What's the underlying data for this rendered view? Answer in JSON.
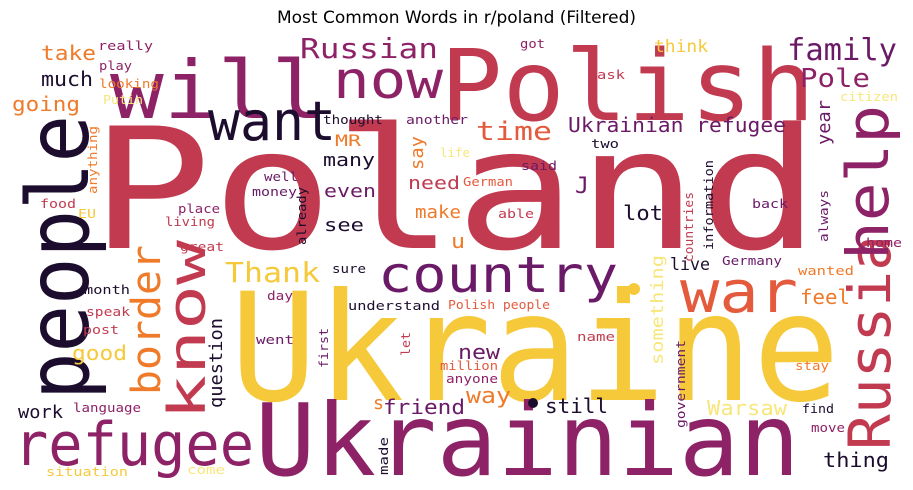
{
  "title": "Most Common Words in r/poland (Filtered)",
  "palette": {
    "crimson": "#c23a50",
    "magenta": "#8d2266",
    "plum": "#6a1a66",
    "dark": "#1c0c2e",
    "orange": "#ef7a2a",
    "salmon": "#e35a3d",
    "yellow": "#f6c93a",
    "pale": "#f7e77a",
    "brown": "#a74a35"
  },
  "words": [
    {
      "text": "Poland",
      "color": "#c23a50"
    },
    {
      "text": "Ukraine",
      "color": "#f6c93a"
    },
    {
      "text": "Ukrainian",
      "color": "#8d2266"
    },
    {
      "text": "Polish",
      "color": "#c23a50"
    },
    {
      "text": "people",
      "color": "#1c0c2e"
    },
    {
      "text": "will",
      "color": "#8d2266"
    },
    {
      "text": "refugee",
      "color": "#8d2266"
    },
    {
      "text": "war",
      "color": "#e35a3d"
    },
    {
      "text": "country",
      "color": "#6a1a66"
    },
    {
      "text": "Russia",
      "color": "#c23a50"
    },
    {
      "text": "now",
      "color": "#8d2266"
    },
    {
      "text": "help",
      "color": "#8d2266"
    },
    {
      "text": "know",
      "color": "#c23a50"
    },
    {
      "text": "want",
      "color": "#1c0c2e"
    },
    {
      "text": "border",
      "color": "#ef7a2a"
    },
    {
      "text": "family",
      "color": "#6a1a66"
    },
    {
      "text": "Russian",
      "color": "#8d2266"
    },
    {
      "text": "Pole",
      "color": "#8d2266"
    },
    {
      "text": "Thank",
      "color": "#f6c93a"
    },
    {
      "text": "time",
      "color": "#e35a3d"
    },
    {
      "text": "Ukrainian refugee",
      "color": "#6a1a66"
    },
    {
      "text": "take",
      "color": "#ef7a2a"
    },
    {
      "text": "much",
      "color": "#1c0c2e"
    },
    {
      "text": "going",
      "color": "#ef7a2a"
    },
    {
      "text": "good",
      "color": "#f6c93a"
    },
    {
      "text": "work",
      "color": "#1c0c2e"
    },
    {
      "text": "question",
      "color": "#1c0c2e"
    },
    {
      "text": "way",
      "color": "#ef7a2a"
    },
    {
      "text": "friend",
      "color": "#6a1a66"
    },
    {
      "text": "still",
      "color": "#1c0c2e"
    },
    {
      "text": "new",
      "color": "#6a1a66"
    },
    {
      "text": "Warsaw",
      "color": "#f7e77a"
    },
    {
      "text": "thing",
      "color": "#1c0c2e"
    },
    {
      "text": "feel",
      "color": "#ef7a2a"
    },
    {
      "text": "live",
      "color": "#1c0c2e"
    },
    {
      "text": "lot",
      "color": "#1c0c2e"
    },
    {
      "text": "make",
      "color": "#ef7a2a"
    },
    {
      "text": "need",
      "color": "#c23a50"
    },
    {
      "text": "even",
      "color": "#6a1a66"
    },
    {
      "text": "see",
      "color": "#1c0c2e"
    },
    {
      "text": "many",
      "color": "#1c0c2e"
    },
    {
      "text": "say",
      "color": "#ef7a2a"
    },
    {
      "text": "MR",
      "color": "#ef7a2a"
    },
    {
      "text": "u",
      "color": "#ef7a2a"
    },
    {
      "text": "J",
      "color": "#6a1a66"
    },
    {
      "text": "s",
      "color": "#ef7a2a"
    },
    {
      "text": "year",
      "color": "#6a1a66"
    },
    {
      "text": "think",
      "color": "#f6c93a"
    },
    {
      "text": "something",
      "color": "#f7e77a"
    },
    {
      "text": "really",
      "color": "#8d2266"
    },
    {
      "text": "play",
      "color": "#8d2266"
    },
    {
      "text": "looking",
      "color": "#ef7a2a"
    },
    {
      "text": "Putin",
      "color": "#f7e77a"
    },
    {
      "text": "got",
      "color": "#8d2266"
    },
    {
      "text": "ask",
      "color": "#c23a50"
    },
    {
      "text": "citizen",
      "color": "#f7e77a"
    },
    {
      "text": "thought",
      "color": "#1c0c2e"
    },
    {
      "text": "another",
      "color": "#6a1a66"
    },
    {
      "text": "life",
      "color": "#f7e77a"
    },
    {
      "text": "said",
      "color": "#6a1a66"
    },
    {
      "text": "two",
      "color": "#1c0c2e"
    },
    {
      "text": "German",
      "color": "#e35a3d"
    },
    {
      "text": "able",
      "color": "#c23a50"
    },
    {
      "text": "back",
      "color": "#6a1a66"
    },
    {
      "text": "always",
      "color": "#6a1a66"
    },
    {
      "text": "home",
      "color": "#8d2266"
    },
    {
      "text": "wanted",
      "color": "#ef7a2a"
    },
    {
      "text": "Germany",
      "color": "#6a1a66"
    },
    {
      "text": "countries",
      "color": "#c23a50"
    },
    {
      "text": "information",
      "color": "#1c0c2e"
    },
    {
      "text": "anything",
      "color": "#ef7a2a"
    },
    {
      "text": "food",
      "color": "#c23a50"
    },
    {
      "text": "EU",
      "color": "#f6c93a"
    },
    {
      "text": "well",
      "color": "#6a1a66"
    },
    {
      "text": "money",
      "color": "#6a1a66"
    },
    {
      "text": "place",
      "color": "#8d2266"
    },
    {
      "text": "living",
      "color": "#c23a50"
    },
    {
      "text": "already",
      "color": "#1c0c2e"
    },
    {
      "text": "great",
      "color": "#c23a50"
    },
    {
      "text": "month",
      "color": "#1c0c2e"
    },
    {
      "text": "day",
      "color": "#8d2266"
    },
    {
      "text": "sure",
      "color": "#1c0c2e"
    },
    {
      "text": "speak",
      "color": "#c23a50"
    },
    {
      "text": "understand",
      "color": "#1c0c2e"
    },
    {
      "text": "Polish people",
      "color": "#e35a3d"
    },
    {
      "text": "post",
      "color": "#c23a50"
    },
    {
      "text": "went",
      "color": "#6a1a66"
    },
    {
      "text": "first",
      "color": "#6a1a66"
    },
    {
      "text": "let",
      "color": "#c23a50"
    },
    {
      "text": "name",
      "color": "#c23a50"
    },
    {
      "text": "million",
      "color": "#e35a3d"
    },
    {
      "text": "anyone",
      "color": "#8d2266"
    },
    {
      "text": "government",
      "color": "#6a1a66"
    },
    {
      "text": "stay",
      "color": "#ef7a2a"
    },
    {
      "text": "find",
      "color": "#1c0c2e"
    },
    {
      "text": "move",
      "color": "#8d2266"
    },
    {
      "text": "language",
      "color": "#8d2266"
    },
    {
      "text": "situation",
      "color": "#f6c93a"
    },
    {
      "text": "come",
      "color": "#f7e77a"
    },
    {
      "text": "made",
      "color": "#1c0c2e"
    }
  ]
}
